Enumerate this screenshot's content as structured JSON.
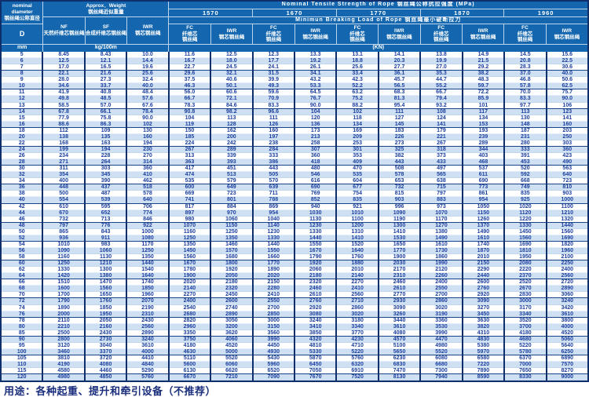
{
  "page": {
    "footer": "用途：各种起重、提升和牵引设备（不推荐）"
  },
  "colors": {
    "header_bg": "#1467ae",
    "border": "#0e2f6b",
    "row_alt_bg": "#cfe0f3",
    "value_text": "#1c3f9e"
  },
  "header": {
    "nominal_diameter": "nominal\ndiameter\n钢丝绳公称直径",
    "d_label": "D",
    "mm_label": "mm",
    "approx_weight": "Approx．Weight\n钢丝绳近似重量",
    "weight_cols": [
      "NF\n天然纤维芯钢丝绳",
      "SF\n合成纤维芯钢丝绳",
      "IWR\n钢芯钢丝绳"
    ],
    "weight_unit": "kg/100m",
    "tensile_title": "Nominal  Tensile  Strength  of  Rope  钢丝绳公称抗拉强度  (MPa)",
    "strengths": [
      "1570",
      "1670",
      "1770",
      "1870",
      "1960"
    ],
    "breaking_title": "Minimun  Breaking  Load  of  Rope  钢丝绳最小破断拉力",
    "fc_label": "FC\n纤维芯\n钢丝绳",
    "iwr_label": "IWR\n钢芯钢丝绳",
    "kn_label": "(KN)"
  },
  "rows": [
    [
      "5",
      "8.45",
      "8.43",
      "10.0",
      "11.6",
      "12.5",
      "12.3",
      "13.3",
      "13.1",
      "14.1",
      "13.8",
      "14.9",
      "14.5",
      "15.6"
    ],
    [
      "6",
      "12.5",
      "12.1",
      "14.4",
      "16.7",
      "18.0",
      "17.7",
      "19.2",
      "18.8",
      "20.3",
      "19.9",
      "21.5",
      "20.8",
      "22.5"
    ],
    [
      "7",
      "17.0",
      "16.5",
      "19.6",
      "22.7",
      "24.5",
      "24.1",
      "26.1",
      "25.6",
      "27.7",
      "27.0",
      "29.2",
      "28.3",
      "30.6"
    ],
    [
      "8",
      "22.1",
      "21.6",
      "25.6",
      "29.6",
      "32.1",
      "31.5",
      "34.1",
      "33.4",
      "36.1",
      "35.3",
      "38.2",
      "37.0",
      "40.0"
    ],
    [
      "9",
      "28.0",
      "27.3",
      "32.4",
      "37.5",
      "40.6",
      "39.9",
      "43.2",
      "42.3",
      "45.7",
      "44.7",
      "48.3",
      "46.8",
      "50.6"
    ],
    [
      "10",
      "34.6",
      "33.7",
      "40.0",
      "46.3",
      "50.1",
      "49.3",
      "53.3",
      "52.2",
      "56.5",
      "55.2",
      "59.7",
      "57.8",
      "62.5"
    ],
    [
      "11",
      "41.9",
      "40.8",
      "48.4",
      "56.0",
      "60.6",
      "59.6",
      "64.5",
      "63.2",
      "68.3",
      "66.7",
      "72.2",
      "70.0",
      "75.7"
    ],
    [
      "12",
      "49.8",
      "48.5",
      "57.6",
      "66.7",
      "72.1",
      "70.9",
      "76.7",
      "75.2",
      "81.3",
      "79.4",
      "85.9",
      "83.3",
      "90.0"
    ],
    [
      "13",
      "58.5",
      "57.0",
      "67.6",
      "78.3",
      "84.6",
      "83.3",
      "90.0",
      "88.2",
      "95.4",
      "93.2",
      "101",
      "97.7",
      "106"
    ],
    [
      "14",
      "67.8",
      "66.1",
      "78.4",
      "90.8",
      "98.2",
      "96.6",
      "104",
      "102",
      "111",
      "108",
      "117",
      "113",
      "123"
    ],
    [
      "15",
      "77.9",
      "75.8",
      "90.0",
      "104",
      "113",
      "111",
      "120",
      "118",
      "127",
      "124",
      "134",
      "130",
      "141"
    ],
    [
      "16",
      "88.6",
      "86.3",
      "102",
      "119",
      "128",
      "126",
      "136",
      "134",
      "145",
      "141",
      "153",
      "148",
      "160"
    ],
    [
      "18",
      "112",
      "109",
      "130",
      "150",
      "162",
      "160",
      "173",
      "169",
      "183",
      "179",
      "193",
      "187",
      "203"
    ],
    [
      "20",
      "138",
      "135",
      "160",
      "185",
      "200",
      "197",
      "213",
      "209",
      "226",
      "221",
      "239",
      "231",
      "250"
    ],
    [
      "22",
      "168",
      "163",
      "194",
      "224",
      "242",
      "238",
      "258",
      "253",
      "273",
      "267",
      "289",
      "280",
      "303"
    ],
    [
      "24",
      "199",
      "194",
      "230",
      "267",
      "289",
      "284",
      "307",
      "301",
      "325",
      "318",
      "344",
      "333",
      "360"
    ],
    [
      "26",
      "234",
      "228",
      "270",
      "313",
      "339",
      "333",
      "360",
      "353",
      "382",
      "373",
      "403",
      "391",
      "423"
    ],
    [
      "28",
      "271",
      "264",
      "314",
      "363",
      "393",
      "386",
      "418",
      "409",
      "443",
      "433",
      "468",
      "453",
      "490"
    ],
    [
      "30",
      "311",
      "303",
      "360",
      "417",
      "451",
      "443",
      "480",
      "470",
      "508",
      "497",
      "537",
      "520",
      "563"
    ],
    [
      "32",
      "354",
      "345",
      "410",
      "474",
      "513",
      "505",
      "546",
      "535",
      "578",
      "565",
      "611",
      "592",
      "640"
    ],
    [
      "34",
      "400",
      "390",
      "462",
      "535",
      "579",
      "570",
      "616",
      "604",
      "653",
      "638",
      "690",
      "668",
      "723"
    ],
    [
      "36",
      "448",
      "437",
      "518",
      "600",
      "649",
      "639",
      "690",
      "677",
      "732",
      "715",
      "773",
      "749",
      "810"
    ],
    [
      "38",
      "500",
      "487",
      "578",
      "669",
      "723",
      "711",
      "769",
      "754",
      "815",
      "797",
      "861",
      "835",
      "903"
    ],
    [
      "40",
      "554",
      "539",
      "640",
      "741",
      "801",
      "788",
      "852",
      "835",
      "903",
      "883",
      "954",
      "925",
      "1000"
    ],
    [
      "42",
      "610",
      "595",
      "706",
      "817",
      "884",
      "869",
      "940",
      "921",
      "996",
      "973",
      "1050",
      "1020",
      "1100"
    ],
    [
      "44",
      "670",
      "652",
      "774",
      "897",
      "970",
      "954",
      "1030",
      "1010",
      "1090",
      "1070",
      "1150",
      "1120",
      "1210"
    ],
    [
      "46",
      "732",
      "713",
      "846",
      "980",
      "1060",
      "1040",
      "1130",
      "1100",
      "1190",
      "1170",
      "1260",
      "1220",
      "1320"
    ],
    [
      "48",
      "797",
      "776",
      "922",
      "1070",
      "1150",
      "1140",
      "1230",
      "1200",
      "1300",
      "1270",
      "1370",
      "1330",
      "1440"
    ],
    [
      "50",
      "865",
      "843",
      "1000",
      "1160",
      "1250",
      "1230",
      "1330",
      "1310",
      "1410",
      "1380",
      "1490",
      "1450",
      "1560"
    ],
    [
      "52",
      "936",
      "911",
      "1080",
      "1250",
      "1350",
      "1330",
      "1440",
      "1410",
      "1530",
      "1490",
      "1610",
      "1560",
      "1690"
    ],
    [
      "54",
      "1010",
      "983",
      "1170",
      "1350",
      "1460",
      "1440",
      "1550",
      "1520",
      "1650",
      "1610",
      "1740",
      "1690",
      "1820"
    ],
    [
      "56",
      "1090",
      "1060",
      "1250",
      "1450",
      "1570",
      "1550",
      "1670",
      "1640",
      "1770",
      "1730",
      "1870",
      "1810",
      "1960"
    ],
    [
      "58",
      "1160",
      "1130",
      "1350",
      "1560",
      "1680",
      "1660",
      "1790",
      "1760",
      "1900",
      "1860",
      "2010",
      "1950",
      "2100"
    ],
    [
      "60",
      "1250",
      "1210",
      "1440",
      "1670",
      "1800",
      "1770",
      "1920",
      "1880",
      "2030",
      "1990",
      "2150",
      "2080",
      "2250"
    ],
    [
      "62",
      "1330",
      "1300",
      "1540",
      "1780",
      "1920",
      "1890",
      "2060",
      "2010",
      "2170",
      "2120",
      "2290",
      "2220",
      "2400"
    ],
    [
      "64",
      "1420",
      "1380",
      "1640",
      "1900",
      "2050",
      "2020",
      "2180",
      "2140",
      "2310",
      "2260",
      "2440",
      "2370",
      "2560"
    ],
    [
      "66",
      "1510",
      "1470",
      "1740",
      "2020",
      "2180",
      "2150",
      "2320",
      "2270",
      "2460",
      "2400",
      "2600",
      "2520",
      "2720"
    ],
    [
      "68",
      "1600",
      "1560",
      "1850",
      "2140",
      "2320",
      "2280",
      "2460",
      "2410",
      "2610",
      "2550",
      "2760",
      "2670",
      "2890"
    ],
    [
      "70",
      "1700",
      "1650",
      "1960",
      "2270",
      "2450",
      "2410",
      "2610",
      "2560",
      "2770",
      "2700",
      "2920",
      "2830",
      "3060"
    ],
    [
      "72",
      "1790",
      "1760",
      "2070",
      "2400",
      "2600",
      "2550",
      "2760",
      "2710",
      "2930",
      "2860",
      "3090",
      "3000",
      "3240"
    ],
    [
      "74",
      "1890",
      "1850",
      "2190",
      "2540",
      "2740",
      "2700",
      "2920",
      "2860",
      "3090",
      "3020",
      "3270",
      "3170",
      "3420"
    ],
    [
      "76",
      "2000",
      "1950",
      "2310",
      "2680",
      "2890",
      "2850",
      "3080",
      "3020",
      "3260",
      "3190",
      "3450",
      "3340",
      "3610"
    ],
    [
      "78",
      "2110",
      "2050",
      "2430",
      "2820",
      "3050",
      "3000",
      "3240",
      "3180",
      "3440",
      "3360",
      "3630",
      "3520",
      "3800"
    ],
    [
      "80",
      "2210",
      "2160",
      "2560",
      "2960",
      "3200",
      "3150",
      "3410",
      "3340",
      "3610",
      "3530",
      "3820",
      "3700",
      "4000"
    ],
    [
      "85",
      "2500",
      "2430",
      "2890",
      "3350",
      "3620",
      "3560",
      "3850",
      "3770",
      "4080",
      "3990",
      "4310",
      "4180",
      "4520"
    ],
    [
      "90",
      "2800",
      "2730",
      "3240",
      "3750",
      "4060",
      "3990",
      "4320",
      "4230",
      "4570",
      "4470",
      "4830",
      "4680",
      "5060"
    ],
    [
      "95",
      "3120",
      "3040",
      "3610",
      "4180",
      "4520",
      "4450",
      "4810",
      "4710",
      "5100",
      "4980",
      "5380",
      "5220",
      "5640"
    ],
    [
      "100",
      "3460",
      "3370",
      "4000",
      "4630",
      "5000",
      "4930",
      "5330",
      "5220",
      "5650",
      "5520",
      "5970",
      "5780",
      "6250"
    ],
    [
      "105",
      "3810",
      "3720",
      "4410",
      "5110",
      "5520",
      "5430",
      "5870",
      "5760",
      "6230",
      "6080",
      "6580",
      "6370",
      "6890"
    ],
    [
      "110",
      "4190",
      "4080",
      "4840",
      "5600",
      "6060",
      "5960",
      "6450",
      "6320",
      "6830",
      "6680",
      "7220",
      "7000",
      "7570"
    ],
    [
      "115",
      "4580",
      "4460",
      "5290",
      "6130",
      "6620",
      "6520",
      "7050",
      "6910",
      "7470",
      "7300",
      "7890",
      "7650",
      "8270"
    ],
    [
      "120",
      "4980",
      "4850",
      "5760",
      "6670",
      "7210",
      "7090",
      "7670",
      "7520",
      "8130",
      "7940",
      "8590",
      "8330",
      "9000"
    ]
  ]
}
